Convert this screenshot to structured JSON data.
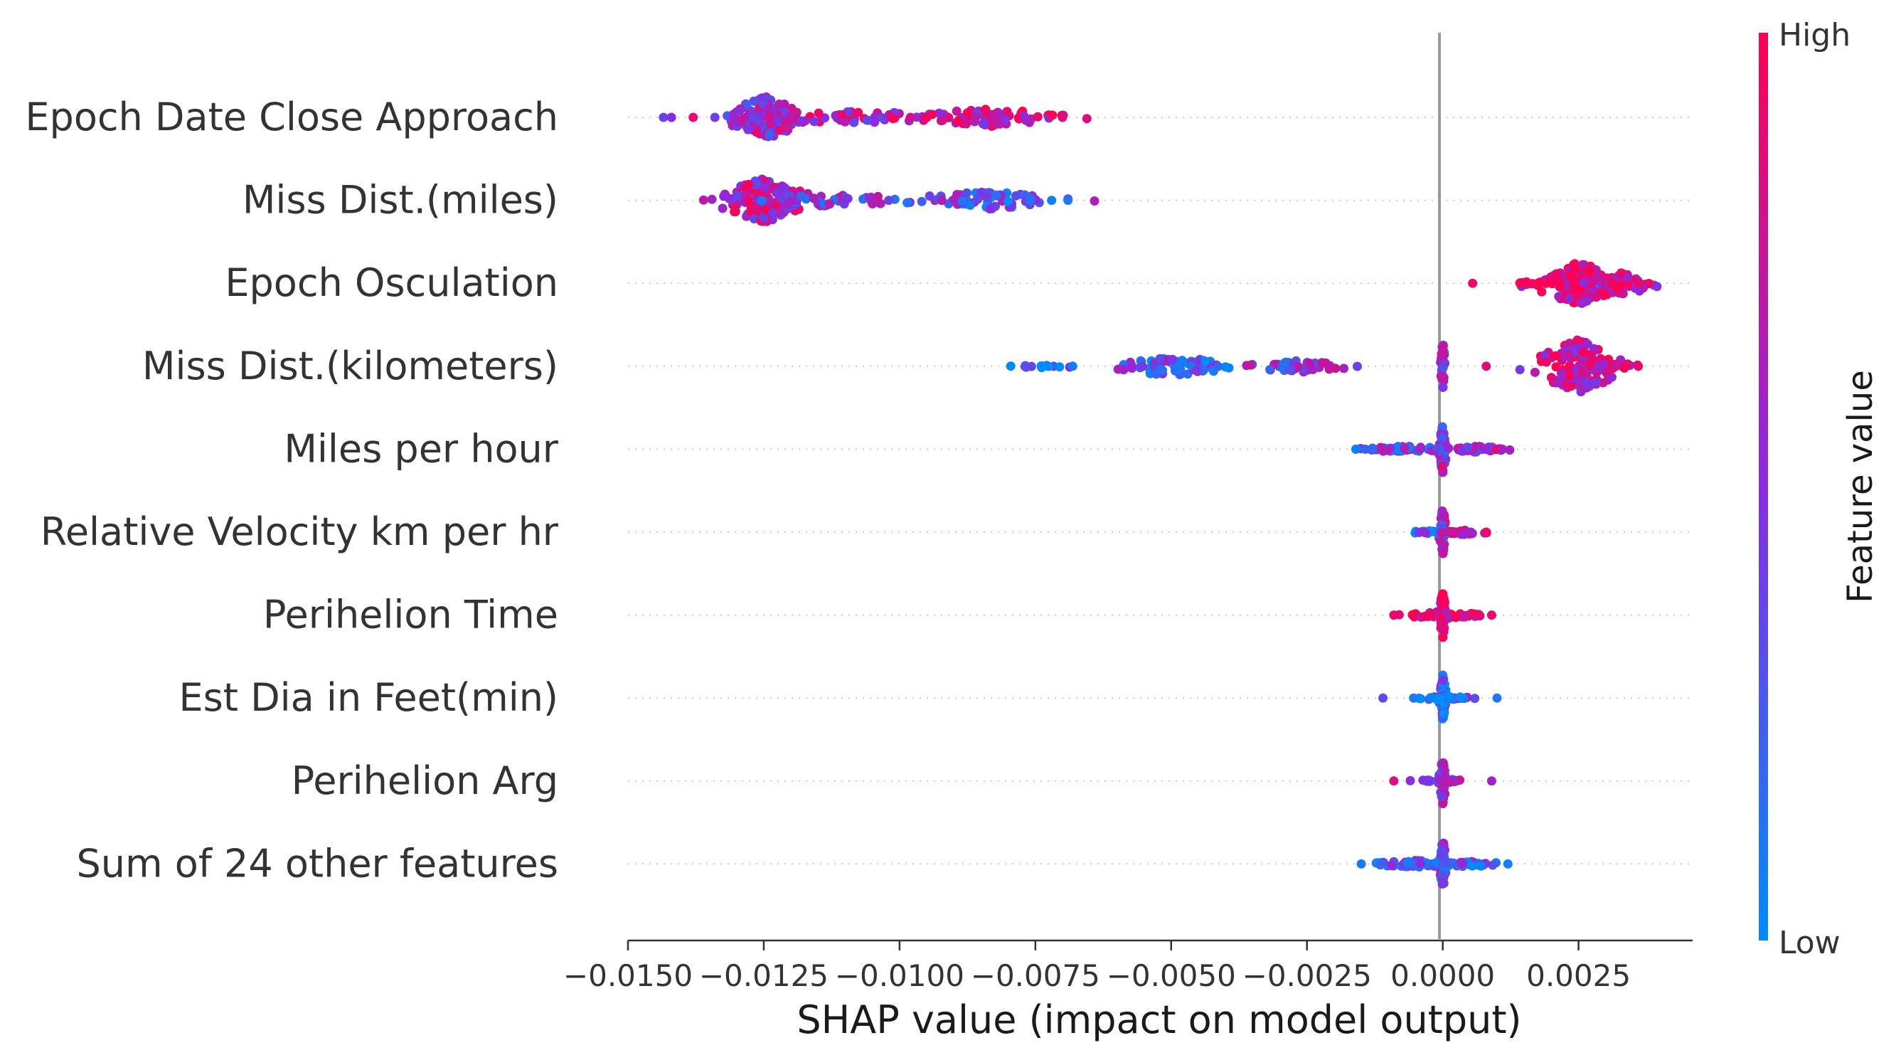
{
  "chart_data": {
    "type": "scatter",
    "subtype": "shap-beeswarm",
    "title": "",
    "xlabel": "SHAP value (impact on model output)",
    "ylabel": "",
    "xlim": [
      -0.015,
      0.0046
    ],
    "xticks": [
      -0.015,
      -0.0125,
      -0.01,
      -0.0075,
      -0.005,
      -0.0025,
      0.0,
      0.0025
    ],
    "xtick_labels": [
      "−0.0150",
      "−0.0125",
      "−0.0100",
      "−0.0075",
      "−0.0050",
      "−0.0025",
      "0.0000",
      "0.0025"
    ],
    "grid": false,
    "zero_line": true,
    "colorbar": {
      "label": "Feature value",
      "high_label": "High",
      "low_label": "Low",
      "high_color": "#ff0052",
      "mid_color": "#8a2be2",
      "low_color": "#008bfb"
    },
    "features": [
      {
        "name": "Epoch Date Close Approach",
        "clusters": [
          {
            "center": -0.01245,
            "spread": 0.00035,
            "count": 150,
            "value": 0.55,
            "vspread": 0.72
          },
          {
            "center": -0.0109,
            "spread": 0.0011,
            "count": 60,
            "value": 0.7,
            "vspread": 0.22
          },
          {
            "center": -0.0083,
            "spread": 0.0007,
            "count": 70,
            "value": 0.75,
            "vspread": 0.3
          }
        ],
        "outliers": [
          [
            -0.0142,
            0.5
          ],
          [
            -0.0138,
            0.9
          ],
          [
            -0.0134,
            0.4
          ],
          [
            -0.0095,
            0.95
          ],
          [
            -0.0098,
            0.8
          ],
          [
            -0.007,
            0.85
          ]
        ]
      },
      {
        "name": "Miss Dist.(miles)",
        "clusters": [
          {
            "center": -0.0125,
            "spread": 0.0004,
            "count": 140,
            "value": 0.7,
            "vspread": 0.75
          },
          {
            "center": -0.0113,
            "spread": 0.0009,
            "count": 50,
            "value": 0.45,
            "vspread": 0.2
          },
          {
            "center": -0.0084,
            "spread": 0.0007,
            "count": 70,
            "value": 0.3,
            "vspread": 0.3
          }
        ],
        "outliers": [
          [
            -0.0102,
            0.4
          ],
          [
            -0.0076,
            0.15
          ],
          [
            -0.0072,
            0.05
          ],
          [
            -0.0069,
            0.1
          ]
        ]
      },
      {
        "name": "Epoch Osculation",
        "clusters": [
          {
            "center": 0.0025,
            "spread": 0.0004,
            "count": 150,
            "value": 0.85,
            "vspread": 0.72
          },
          {
            "center": 0.0033,
            "spread": 0.0003,
            "count": 60,
            "value": 0.8,
            "vspread": 0.4
          },
          {
            "center": 0.0015,
            "spread": 0.0005,
            "count": 10,
            "value": 0.95,
            "vspread": 0.05
          }
        ],
        "outliers": [
          [
            0.00055,
            0.95
          ],
          [
            0.0036,
            0.9
          ]
        ]
      },
      {
        "name": "Miss Dist.(kilometers)",
        "clusters": [
          {
            "center": -0.005,
            "spread": 0.0005,
            "count": 80,
            "value": 0.3,
            "vspread": 0.35
          },
          {
            "center": -0.0026,
            "spread": 0.0005,
            "count": 50,
            "value": 0.45,
            "vspread": 0.2
          },
          {
            "center": -0.0073,
            "spread": 0.0005,
            "count": 14,
            "value": 0.1,
            "vspread": 0.05
          },
          {
            "center": 0.0,
            "spread": 2e-05,
            "count": 30,
            "value": 0.5,
            "vspread": 0.85
          },
          {
            "center": 0.0025,
            "spread": 0.0004,
            "count": 120,
            "value": 0.75,
            "vspread": 0.9
          },
          {
            "center": 0.0031,
            "spread": 0.0003,
            "count": 25,
            "value": 0.9,
            "vspread": 0.2
          }
        ],
        "outliers": [
          [
            0.0008,
            0.85
          ],
          [
            0.0036,
            0.95
          ]
        ]
      },
      {
        "name": "Miles per hour",
        "clusters": [
          {
            "center": 0.0,
            "spread": 3e-05,
            "count": 70,
            "value": 0.5,
            "vspread": 0.85
          },
          {
            "center": -0.0007,
            "spread": 0.00045,
            "count": 60,
            "value": 0.35,
            "vspread": 0.1
          },
          {
            "center": 0.0006,
            "spread": 0.0003,
            "count": 50,
            "value": 0.6,
            "vspread": 0.1
          }
        ],
        "outliers": [
          [
            -0.0016,
            0.05
          ],
          [
            0.0011,
            0.6
          ]
        ]
      },
      {
        "name": "Relative Velocity km per hr",
        "clusters": [
          {
            "center": 0.0,
            "spread": 3e-05,
            "count": 60,
            "value": 0.5,
            "vspread": 0.8
          },
          {
            "center": -0.0003,
            "spread": 0.0002,
            "count": 20,
            "value": 0.2,
            "vspread": 0.05
          },
          {
            "center": 0.0004,
            "spread": 0.0002,
            "count": 25,
            "value": 0.85,
            "vspread": 0.08
          }
        ],
        "outliers": [
          [
            0.0008,
            0.9
          ]
        ]
      },
      {
        "name": "Perihelion Time",
        "clusters": [
          {
            "center": 0.0,
            "spread": 3e-05,
            "count": 60,
            "value": 0.9,
            "vspread": 0.8
          },
          {
            "center": 0.0,
            "spread": 0.00035,
            "count": 60,
            "value": 0.92,
            "vspread": 0.12
          }
        ],
        "outliers": [
          [
            -0.0009,
            0.9
          ],
          [
            0.0009,
            0.9
          ]
        ]
      },
      {
        "name": "Est Dia in Feet(min)",
        "clusters": [
          {
            "center": 0.0,
            "spread": 3e-05,
            "count": 60,
            "value": 0.2,
            "vspread": 0.8
          },
          {
            "center": 0.0,
            "spread": 0.00025,
            "count": 30,
            "value": 0.25,
            "vspread": 0.08
          }
        ],
        "outliers": [
          [
            -0.0011,
            0.35
          ],
          [
            0.001,
            0.1
          ]
        ]
      },
      {
        "name": "Perihelion Arg",
        "clusters": [
          {
            "center": 0.0,
            "spread": 3e-05,
            "count": 55,
            "value": 0.6,
            "vspread": 0.8
          },
          {
            "center": 0.0,
            "spread": 0.0002,
            "count": 30,
            "value": 0.6,
            "vspread": 0.08
          }
        ],
        "outliers": [
          [
            -0.0009,
            0.85
          ],
          [
            0.0009,
            0.6
          ]
        ]
      },
      {
        "name": "Sum of 24 other features",
        "clusters": [
          {
            "center": 0.0,
            "spread": 3e-05,
            "count": 70,
            "value": 0.4,
            "vspread": 0.85
          },
          {
            "center": -0.0005,
            "spread": 0.0004,
            "count": 60,
            "value": 0.3,
            "vspread": 0.12
          },
          {
            "center": 0.0005,
            "spread": 0.0003,
            "count": 40,
            "value": 0.25,
            "vspread": 0.1
          }
        ],
        "outliers": [
          [
            -0.0015,
            0.1
          ],
          [
            0.0012,
            0.05
          ]
        ]
      }
    ]
  }
}
